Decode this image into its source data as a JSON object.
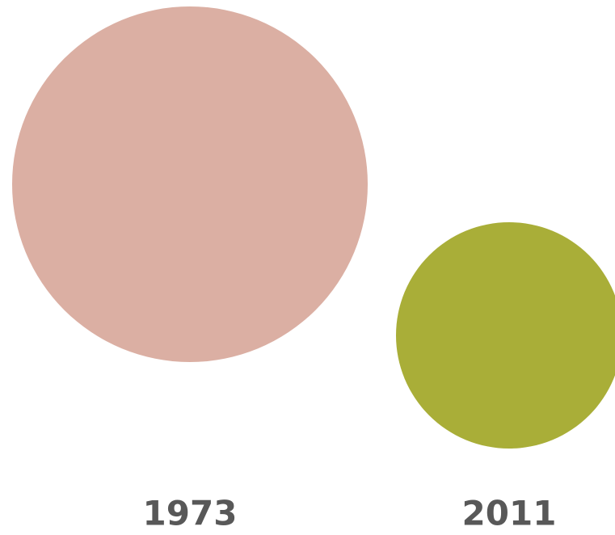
{
  "items": [
    {
      "label": "1973",
      "color": "#dbafa3"
    },
    {
      "label": "2011",
      "color": "#a9ae38"
    }
  ]
}
